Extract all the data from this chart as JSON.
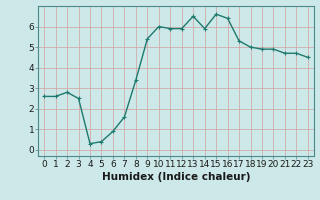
{
  "x": [
    0,
    1,
    2,
    3,
    4,
    5,
    6,
    7,
    8,
    9,
    10,
    11,
    12,
    13,
    14,
    15,
    16,
    17,
    18,
    19,
    20,
    21,
    22,
    23
  ],
  "y": [
    2.6,
    2.6,
    2.8,
    2.5,
    0.3,
    0.4,
    0.9,
    1.6,
    3.4,
    5.4,
    6.0,
    5.9,
    5.9,
    6.5,
    5.9,
    6.6,
    6.4,
    5.3,
    5.0,
    4.9,
    4.9,
    4.7,
    4.7,
    4.5
  ],
  "xlabel": "Humidex (Indice chaleur)",
  "xlim": [
    -0.5,
    23.5
  ],
  "ylim": [
    -0.3,
    7.0
  ],
  "yticks": [
    0,
    1,
    2,
    3,
    4,
    5,
    6
  ],
  "xticks": [
    0,
    1,
    2,
    3,
    4,
    5,
    6,
    7,
    8,
    9,
    10,
    11,
    12,
    13,
    14,
    15,
    16,
    17,
    18,
    19,
    20,
    21,
    22,
    23
  ],
  "line_color": "#1e7a6e",
  "bg_color": "#cce8e8",
  "grid_color": "#b8d4d4",
  "xlabel_fontsize": 7.5,
  "tick_fontsize": 6.5,
  "line_width": 1.0,
  "marker_size": 2.5
}
